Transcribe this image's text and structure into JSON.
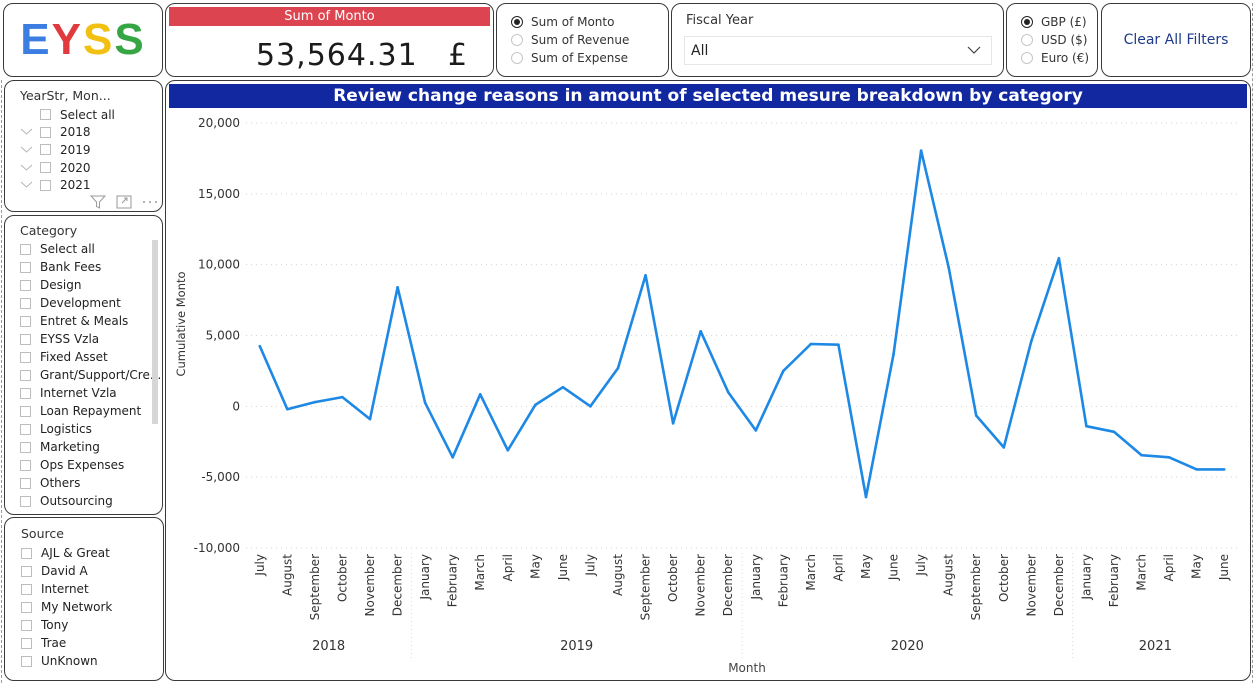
{
  "logo": {
    "text": "EYSS",
    "letters": [
      "E",
      "Y",
      "S",
      "S"
    ],
    "colors": [
      "#3b7de0",
      "#e0393e",
      "#f2c010",
      "#36a645"
    ]
  },
  "kpi": {
    "title": "Sum of Monto",
    "value": "53,564.31",
    "currency": "£",
    "title_bg": "#dc4450"
  },
  "measure_selector": {
    "options": [
      {
        "label": "Sum of Monto",
        "selected": true
      },
      {
        "label": "Sum of Revenue",
        "selected": false
      },
      {
        "label": "Sum of Expense",
        "selected": false
      }
    ]
  },
  "fiscal_year": {
    "label": "Fiscal Year",
    "value": "All"
  },
  "currency_selector": {
    "options": [
      {
        "label": "GBP (£)",
        "selected": true
      },
      {
        "label": "USD ($)",
        "selected": false
      },
      {
        "label": "Euro (€)",
        "selected": false
      }
    ]
  },
  "clear_filters": {
    "label": "Clear All Filters"
  },
  "year_slicer": {
    "title": "YearStr, Mon...",
    "select_all": "Select all",
    "items": [
      "2018",
      "2019",
      "2020",
      "2021"
    ],
    "icons": [
      "filter-icon",
      "focus-mode-icon",
      "more-options-icon"
    ]
  },
  "category_slicer": {
    "title": "Category",
    "items": [
      "Select all",
      "Bank Fees",
      "Design",
      "Development",
      "Entret & Meals",
      "EYSS Vzla",
      "Fixed Asset",
      "Grant/Support/Cre...",
      "Internet Vzla",
      "Loan Repayment",
      "Logistics",
      "Marketing",
      "Ops Expenses",
      "Others",
      "Outsourcing"
    ]
  },
  "source_slicer": {
    "title": "Source",
    "items": [
      "AJL & Great",
      "David A",
      "Internet",
      "My Network",
      "Tony",
      "Trae",
      "UnKnown"
    ]
  },
  "chart_data": {
    "type": "line",
    "title": "Review change reasons in amount of selected mesure breakdown by category",
    "xlabel": "Month",
    "ylabel": "Cumulative Monto",
    "ylim": [
      -10000,
      20000
    ],
    "yticks": [
      20000,
      15000,
      10000,
      5000,
      0,
      -5000,
      -10000
    ],
    "ytick_labels": [
      "20,000",
      "15,000",
      "10,000",
      "5,000",
      "0",
      "-5,000",
      "-10,000"
    ],
    "grid": true,
    "line_color": "#1e88e5",
    "title_bg": "#1228a0",
    "year_groups": [
      {
        "year": "2018",
        "count": 6
      },
      {
        "year": "2019",
        "count": 12
      },
      {
        "year": "2020",
        "count": 12
      },
      {
        "year": "2021",
        "count": 6
      }
    ],
    "categories": [
      "July",
      "August",
      "September",
      "October",
      "November",
      "December",
      "January",
      "February",
      "March",
      "April",
      "May",
      "June",
      "July",
      "August",
      "September",
      "October",
      "November",
      "December",
      "January",
      "February",
      "March",
      "April",
      "May",
      "June",
      "July",
      "August",
      "September",
      "October",
      "November",
      "December",
      "January",
      "February",
      "March",
      "April",
      "May",
      "June"
    ],
    "series": [
      {
        "name": "Cumulative Monto",
        "values": [
          4250,
          -200,
          300,
          650,
          -900,
          8400,
          250,
          -3600,
          850,
          -3100,
          100,
          1350,
          0,
          2700,
          9250,
          -1200,
          5300,
          1000,
          -1700,
          2500,
          4400,
          4350,
          -6400,
          3700,
          18050,
          9800,
          -650,
          -2900,
          4600,
          10450,
          -1400,
          -1800,
          -3450,
          -3600,
          -4450,
          -4450
        ]
      }
    ]
  }
}
